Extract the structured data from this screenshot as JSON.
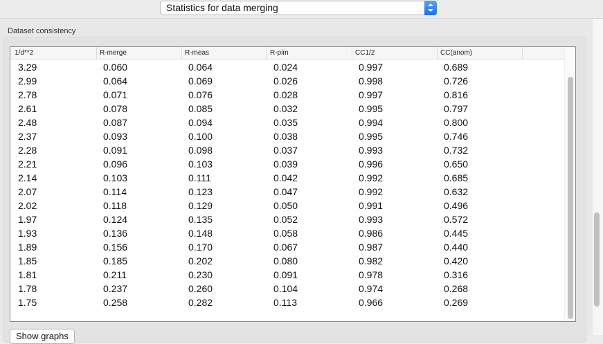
{
  "view_selector": {
    "selected": "Statistics for data merging"
  },
  "group": {
    "title": "Dataset consistency"
  },
  "table": {
    "headers": [
      "1/d**2",
      "R-merge",
      "R-meas",
      "R-pim",
      "CC1/2",
      "CC(anom)"
    ],
    "rows": [
      [
        "3.29",
        "0.060",
        "0.064",
        "0.024",
        "0.997",
        "0.689"
      ],
      [
        "2.99",
        "0.064",
        "0.069",
        "0.026",
        "0.998",
        "0.726"
      ],
      [
        "2.78",
        "0.071",
        "0.076",
        "0.028",
        "0.997",
        "0.816"
      ],
      [
        "2.61",
        "0.078",
        "0.085",
        "0.032",
        "0.995",
        "0.797"
      ],
      [
        "2.48",
        "0.087",
        "0.094",
        "0.035",
        "0.994",
        "0.800"
      ],
      [
        "2.37",
        "0.093",
        "0.100",
        "0.038",
        "0.995",
        "0.746"
      ],
      [
        "2.28",
        "0.091",
        "0.098",
        "0.037",
        "0.993",
        "0.732"
      ],
      [
        "2.21",
        "0.096",
        "0.103",
        "0.039",
        "0.996",
        "0.650"
      ],
      [
        "2.14",
        "0.103",
        "0.111",
        "0.042",
        "0.992",
        "0.685"
      ],
      [
        "2.07",
        "0.114",
        "0.123",
        "0.047",
        "0.992",
        "0.632"
      ],
      [
        "2.02",
        "0.118",
        "0.129",
        "0.050",
        "0.991",
        "0.496"
      ],
      [
        "1.97",
        "0.124",
        "0.135",
        "0.052",
        "0.993",
        "0.572"
      ],
      [
        "1.93",
        "0.136",
        "0.148",
        "0.058",
        "0.986",
        "0.445"
      ],
      [
        "1.89",
        "0.156",
        "0.170",
        "0.067",
        "0.987",
        "0.440"
      ],
      [
        "1.85",
        "0.185",
        "0.202",
        "0.080",
        "0.982",
        "0.420"
      ],
      [
        "1.81",
        "0.211",
        "0.230",
        "0.091",
        "0.978",
        "0.316"
      ],
      [
        "1.78",
        "0.237",
        "0.260",
        "0.104",
        "0.974",
        "0.268"
      ],
      [
        "1.75",
        "0.258",
        "0.282",
        "0.113",
        "0.966",
        "0.269"
      ]
    ]
  },
  "buttons": {
    "show_graphs": "Show graphs"
  }
}
